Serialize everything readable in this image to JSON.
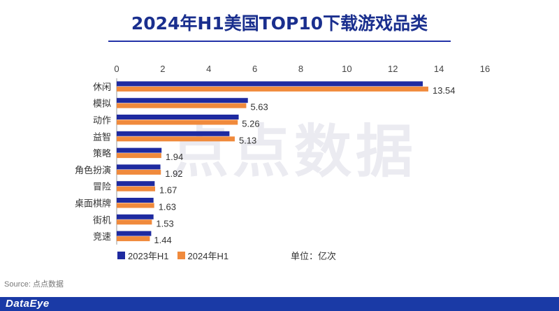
{
  "chart_data": {
    "type": "bar",
    "orientation": "horizontal",
    "title": "2024年H1美国TOP10下载游戏品类",
    "categories": [
      "休闲",
      "模拟",
      "动作",
      "益智",
      "策略",
      "角色扮演",
      "冒险",
      "桌面棋牌",
      "街机",
      "竞速"
    ],
    "series": [
      {
        "name": "2023年H1",
        "color": "#1e2aa0",
        "values": [
          13.3,
          5.7,
          5.3,
          4.9,
          1.95,
          1.9,
          1.65,
          1.6,
          1.6,
          1.5
        ]
      },
      {
        "name": "2024年H1",
        "color": "#f08a3c",
        "values": [
          13.54,
          5.63,
          5.26,
          5.13,
          1.94,
          1.92,
          1.67,
          1.63,
          1.53,
          1.44
        ]
      }
    ],
    "data_labels": [
      "13.54",
      "5.63",
      "5.26",
      "5.13",
      "1.94",
      "1.92",
      "1.67",
      "1.63",
      "1.53",
      "1.44"
    ],
    "xlim": [
      0,
      16
    ],
    "ticks": [
      "0",
      "2",
      "4",
      "6",
      "8",
      "10",
      "12",
      "14",
      "16"
    ],
    "legend_position": "bottom-left",
    "grid": false
  },
  "unit_label": "单位：亿次",
  "watermark": "点点数据",
  "source": "Source: 点点数据",
  "brand": "DataEye"
}
